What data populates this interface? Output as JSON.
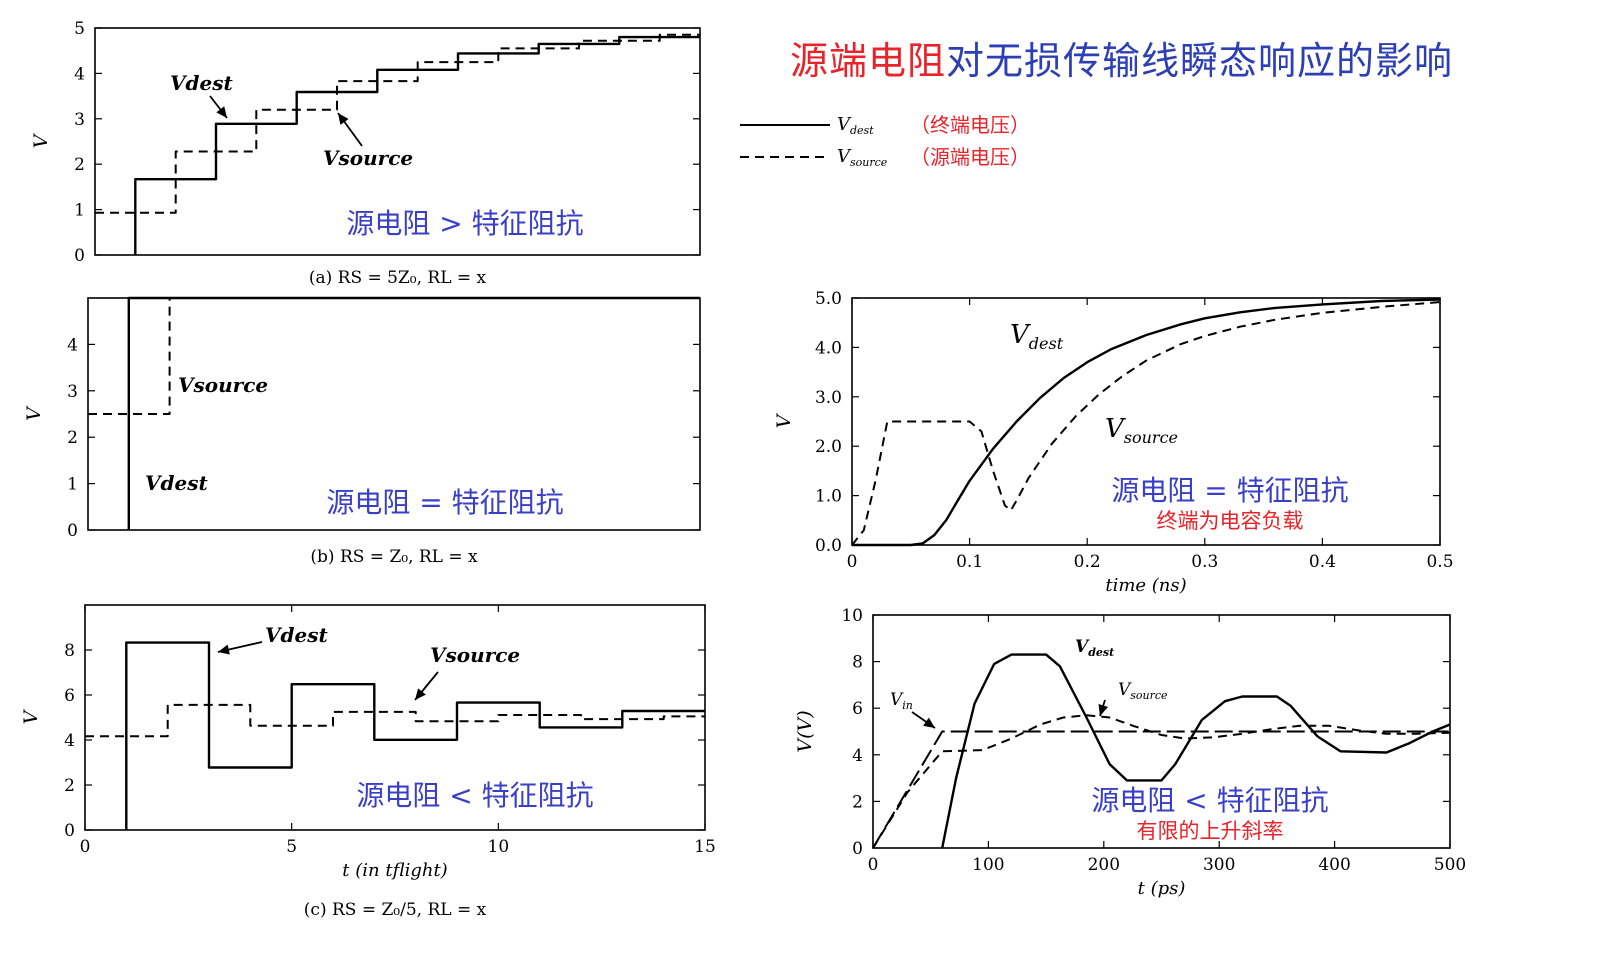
{
  "title": {
    "part_red": "源端电阻",
    "part_blue": "对无损传输线瞬态响应的影响"
  },
  "legend": [
    {
      "line": "solid",
      "label_var": "V",
      "label_sub": "dest",
      "label_cn": "（终端电压）"
    },
    {
      "line": "dashed",
      "label_var": "V",
      "label_sub": "source",
      "label_cn": "（源端电压）"
    }
  ],
  "colors": {
    "title_red": "#e8242a",
    "title_blue": "#2d3fb5",
    "annot_blue": "#3a3fc7",
    "annot_red": "#e8242a"
  },
  "chart_data": [
    {
      "id": "a",
      "type": "line",
      "caption": "(a) R_S = 5Z_0, R_L = x",
      "ylabel": "V",
      "xlim": [
        0,
        15
      ],
      "ylim": [
        0,
        5
      ],
      "yticks": [
        0,
        1,
        2,
        3,
        4,
        5
      ],
      "xticks": [],
      "annotation": "源电阻 > 特征阻抗",
      "labels": [
        "Vdest",
        "Vsource"
      ],
      "series": [
        {
          "name": "Vdest",
          "style": "solid",
          "points": [
            [
              1,
              0
            ],
            [
              1,
              1.67
            ],
            [
              3,
              1.67
            ],
            [
              3,
              2.89
            ],
            [
              5,
              2.89
            ],
            [
              5,
              3.59
            ],
            [
              7,
              3.59
            ],
            [
              7,
              4.08
            ],
            [
              9,
              4.08
            ],
            [
              9,
              4.44
            ],
            [
              11,
              4.44
            ],
            [
              11,
              4.65
            ],
            [
              13,
              4.65
            ],
            [
              13,
              4.8
            ],
            [
              15,
              4.8
            ]
          ]
        },
        {
          "name": "Vsource",
          "style": "dashed",
          "points": [
            [
              0,
              0.93
            ],
            [
              2,
              0.93
            ],
            [
              2,
              2.28
            ],
            [
              4,
              2.28
            ],
            [
              4,
              3.2
            ],
            [
              6,
              3.2
            ],
            [
              6,
              3.83
            ],
            [
              8,
              3.83
            ],
            [
              8,
              4.25
            ],
            [
              10,
              4.25
            ],
            [
              10,
              4.55
            ],
            [
              12,
              4.55
            ],
            [
              12,
              4.72
            ],
            [
              14,
              4.72
            ],
            [
              14,
              4.85
            ],
            [
              15,
              4.85
            ]
          ]
        }
      ]
    },
    {
      "id": "b",
      "type": "line",
      "caption": "(b) R_S = Z_0, R_L = x",
      "ylabel": "V",
      "xlim": [
        0,
        15
      ],
      "ylim": [
        0,
        5
      ],
      "yticks": [
        0,
        1,
        2,
        3,
        4
      ],
      "xticks": [],
      "annotation": "源电阻 = 特征阻抗",
      "labels": [
        "Vsource",
        "Vdest"
      ],
      "series": [
        {
          "name": "Vdest",
          "style": "solid",
          "points": [
            [
              1,
              0
            ],
            [
              1,
              5
            ],
            [
              15,
              5
            ]
          ]
        },
        {
          "name": "Vsource",
          "style": "dashed",
          "points": [
            [
              0,
              2.5
            ],
            [
              2,
              2.5
            ],
            [
              2,
              5
            ],
            [
              15,
              5
            ]
          ]
        }
      ]
    },
    {
      "id": "c",
      "type": "line",
      "caption": "(c) R_S = Z_0/5, R_L = x",
      "xlabel": "t (in t_flight)",
      "ylabel": "V",
      "xlim": [
        0,
        15
      ],
      "ylim": [
        0,
        10
      ],
      "xticks": [
        0,
        5,
        10,
        15
      ],
      "yticks": [
        0,
        2,
        4,
        6,
        8
      ],
      "annotation": "源电阻 < 特征阻抗",
      "labels": [
        "Vdest",
        "Vsource"
      ],
      "series": [
        {
          "name": "Vdest",
          "style": "solid",
          "points": [
            [
              1,
              0
            ],
            [
              1,
              8.33
            ],
            [
              3,
              8.33
            ],
            [
              3,
              2.78
            ],
            [
              5,
              2.78
            ],
            [
              5,
              6.48
            ],
            [
              7,
              6.48
            ],
            [
              7,
              4.01
            ],
            [
              9,
              4.01
            ],
            [
              9,
              5.66
            ],
            [
              11,
              5.66
            ],
            [
              11,
              4.56
            ],
            [
              13,
              4.56
            ],
            [
              13,
              5.29
            ],
            [
              15,
              5.29
            ]
          ]
        },
        {
          "name": "Vsource",
          "style": "dashed",
          "points": [
            [
              0,
              4.17
            ],
            [
              2,
              4.17
            ],
            [
              2,
              5.56
            ],
            [
              4,
              5.56
            ],
            [
              4,
              4.63
            ],
            [
              6,
              4.63
            ],
            [
              6,
              5.25
            ],
            [
              8,
              5.25
            ],
            [
              8,
              4.83
            ],
            [
              10,
              4.83
            ],
            [
              10,
              5.11
            ],
            [
              12,
              5.11
            ],
            [
              12,
              4.93
            ],
            [
              14,
              4.93
            ],
            [
              14,
              5.05
            ],
            [
              15,
              5.05
            ]
          ]
        }
      ]
    },
    {
      "id": "d",
      "type": "line",
      "xlabel": "time (ns)",
      "ylabel": "V",
      "xlim": [
        0,
        0.5
      ],
      "ylim": [
        0,
        5
      ],
      "xticks": [
        0,
        0.1,
        0.2,
        0.3,
        0.4,
        0.5
      ],
      "xtick_labels": [
        "0",
        "0.1",
        "0.2",
        "0.3",
        "0.4",
        "0.5"
      ],
      "yticks": [
        0,
        1,
        2,
        3,
        4,
        5
      ],
      "ytick_labels": [
        "0.0",
        "1.0",
        "2.0",
        "3.0",
        "4.0",
        "5.0"
      ],
      "annotation": "源电阻 = 特征阻抗",
      "annotation2": "终端为电容负载",
      "series": [
        {
          "name": "Vdest",
          "style": "solid",
          "points": [
            [
              0,
              0
            ],
            [
              0.05,
              0
            ],
            [
              0.06,
              0.03
            ],
            [
              0.07,
              0.2
            ],
            [
              0.08,
              0.5
            ],
            [
              0.09,
              0.9
            ],
            [
              0.1,
              1.3
            ],
            [
              0.12,
              1.95
            ],
            [
              0.14,
              2.5
            ],
            [
              0.16,
              2.98
            ],
            [
              0.18,
              3.38
            ],
            [
              0.2,
              3.7
            ],
            [
              0.22,
              3.96
            ],
            [
              0.25,
              4.25
            ],
            [
              0.28,
              4.47
            ],
            [
              0.3,
              4.59
            ],
            [
              0.33,
              4.71
            ],
            [
              0.36,
              4.8
            ],
            [
              0.4,
              4.87
            ],
            [
              0.45,
              4.94
            ],
            [
              0.5,
              4.97
            ]
          ]
        },
        {
          "name": "Vsource",
          "style": "dashed",
          "points": [
            [
              0,
              0
            ],
            [
              0.01,
              0.3
            ],
            [
              0.02,
              1.3
            ],
            [
              0.03,
              2.5
            ],
            [
              0.1,
              2.5
            ],
            [
              0.11,
              2.3
            ],
            [
              0.12,
              1.5
            ],
            [
              0.13,
              0.8
            ],
            [
              0.135,
              0.7
            ],
            [
              0.14,
              0.9
            ],
            [
              0.15,
              1.35
            ],
            [
              0.17,
              2.05
            ],
            [
              0.19,
              2.6
            ],
            [
              0.21,
              3.05
            ],
            [
              0.23,
              3.42
            ],
            [
              0.25,
              3.73
            ],
            [
              0.28,
              4.07
            ],
            [
              0.3,
              4.23
            ],
            [
              0.33,
              4.42
            ],
            [
              0.36,
              4.56
            ],
            [
              0.4,
              4.7
            ],
            [
              0.45,
              4.82
            ],
            [
              0.5,
              4.92
            ]
          ]
        }
      ]
    },
    {
      "id": "e",
      "type": "line",
      "xlabel": "t (ps)",
      "ylabel": "V(V)",
      "xlim": [
        0,
        500
      ],
      "ylim": [
        0,
        10
      ],
      "xticks": [
        0,
        100,
        200,
        300,
        400,
        500
      ],
      "yticks": [
        0,
        2,
        4,
        6,
        8,
        10
      ],
      "annotation": "源电阻 < 特征阻抗",
      "annotation2": "有限的上升斜率",
      "series": [
        {
          "name": "Vdest",
          "style": "solid",
          "points": [
            [
              60,
              0
            ],
            [
              72,
              3
            ],
            [
              88,
              6.2
            ],
            [
              105,
              7.9
            ],
            [
              120,
              8.3
            ],
            [
              150,
              8.3
            ],
            [
              162,
              7.8
            ],
            [
              185,
              5.6
            ],
            [
              205,
              3.6
            ],
            [
              220,
              2.9
            ],
            [
              250,
              2.9
            ],
            [
              262,
              3.6
            ],
            [
              285,
              5.5
            ],
            [
              305,
              6.3
            ],
            [
              320,
              6.5
            ],
            [
              350,
              6.5
            ],
            [
              362,
              6.1
            ],
            [
              385,
              4.8
            ],
            [
              405,
              4.15
            ],
            [
              445,
              4.1
            ],
            [
              465,
              4.5
            ],
            [
              485,
              5
            ],
            [
              500,
              5.3
            ]
          ]
        },
        {
          "name": "Vsource",
          "style": "dashed",
          "points": [
            [
              0,
              0
            ],
            [
              10,
              0.8
            ],
            [
              30,
              2.4
            ],
            [
              60,
              4.15
            ],
            [
              95,
              4.2
            ],
            [
              120,
              4.7
            ],
            [
              145,
              5.3
            ],
            [
              165,
              5.6
            ],
            [
              185,
              5.7
            ],
            [
              205,
              5.6
            ],
            [
              225,
              5.25
            ],
            [
              250,
              4.85
            ],
            [
              270,
              4.7
            ],
            [
              295,
              4.75
            ],
            [
              320,
              4.9
            ],
            [
              345,
              5.1
            ],
            [
              370,
              5.25
            ],
            [
              395,
              5.25
            ],
            [
              420,
              5.05
            ],
            [
              445,
              4.9
            ],
            [
              470,
              4.9
            ],
            [
              500,
              4.95
            ]
          ]
        },
        {
          "name": "Vin",
          "style": "longdash",
          "points": [
            [
              0,
              0
            ],
            [
              60,
              5
            ],
            [
              500,
              5
            ]
          ]
        }
      ]
    }
  ]
}
